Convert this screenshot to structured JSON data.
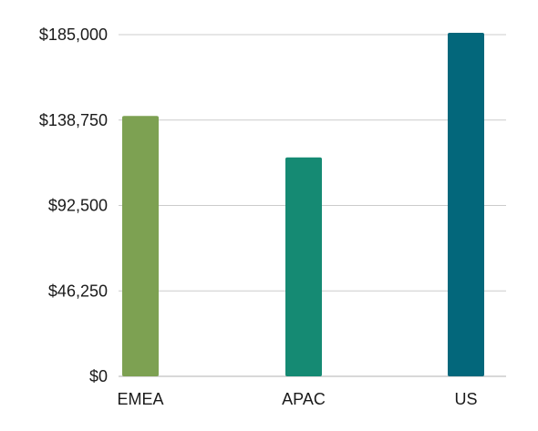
{
  "chart_data": {
    "type": "bar",
    "title": "",
    "xlabel": "",
    "ylabel": "",
    "categories": [
      "EMEA",
      "APAC",
      "US"
    ],
    "values": [
      141000,
      118500,
      186000
    ],
    "colors": [
      "#7da152",
      "#158a73",
      "#03677b"
    ],
    "ylim": [
      0,
      185000
    ],
    "yticks": [
      0,
      46250,
      92500,
      138750,
      185000
    ],
    "ytick_labels": [
      "$0",
      "$46,250",
      "$92,500",
      "$138,750",
      "$185,000"
    ],
    "grid": true,
    "legend": "none"
  }
}
